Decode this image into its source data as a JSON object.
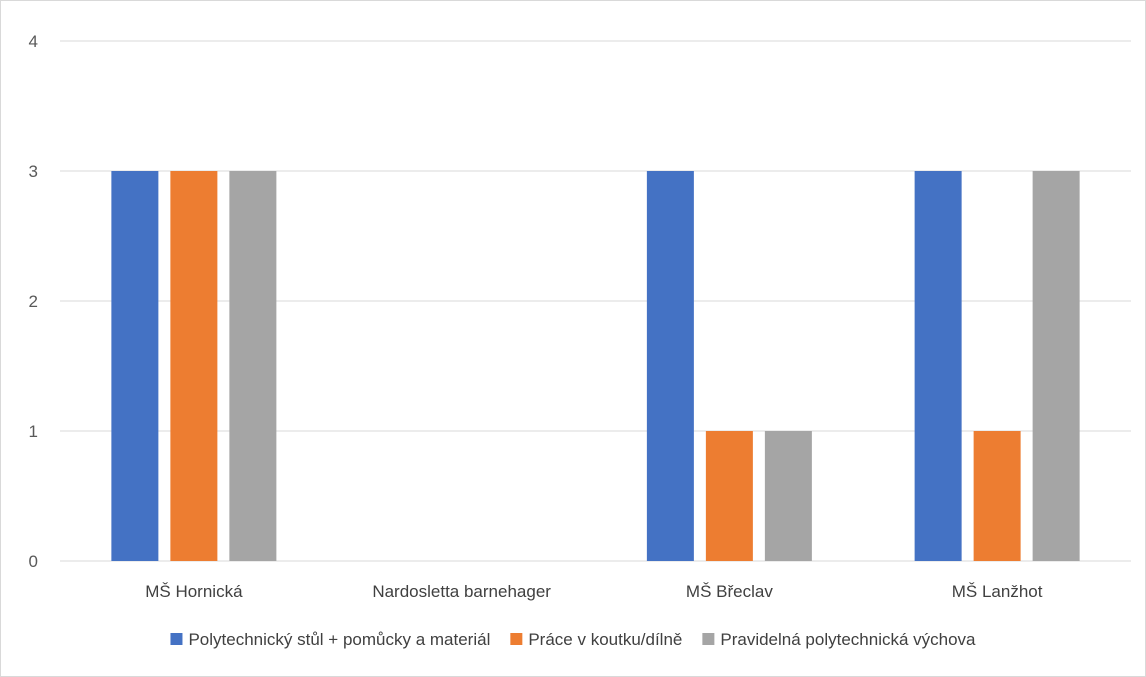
{
  "chart_data": {
    "type": "bar",
    "categories": [
      "MŠ Hornická",
      "Nardosletta barnehager",
      "MŠ Břeclav",
      "MŠ Lanžhot"
    ],
    "series": [
      {
        "name": "Polytechnický stůl + pomůcky a materiál",
        "color": "#4472C4",
        "values": [
          3,
          0,
          3,
          3
        ]
      },
      {
        "name": "Práce v koutku/dílně",
        "color": "#ED7D31",
        "values": [
          3,
          0,
          1,
          1
        ]
      },
      {
        "name": "Pravidelná polytechnická výchova",
        "color": "#A5A5A5",
        "values": [
          3,
          0,
          1,
          3
        ]
      }
    ],
    "y_ticks": [
      "0",
      "1",
      "2",
      "3",
      "4"
    ],
    "ylim": [
      0,
      4
    ],
    "grid": true,
    "legend_position": "bottom"
  }
}
